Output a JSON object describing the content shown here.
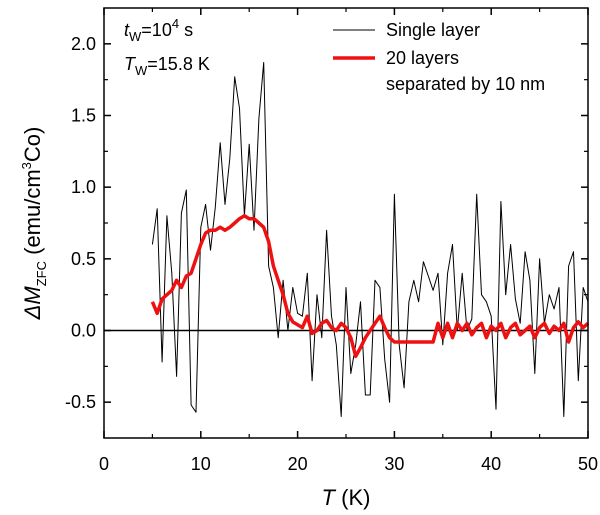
{
  "chart_data": {
    "type": "line",
    "xlim": [
      0,
      50
    ],
    "ylim": [
      -0.75,
      2.25
    ],
    "x_ticks": [
      0,
      10,
      20,
      30,
      40,
      50
    ],
    "y_ticks": [
      -0.5,
      0.0,
      0.5,
      1.0,
      1.5,
      2.0
    ],
    "x_tick_labels": [
      "0",
      "10",
      "20",
      "30",
      "40",
      "50"
    ],
    "y_tick_labels": [
      "-0.5",
      "0.0",
      "0.5",
      "1.0",
      "1.5",
      "2.0"
    ],
    "xlabel": {
      "var": "T",
      "rest": " (K)"
    },
    "ylabel": {
      "delta": "ΔM",
      "sub": "ZFC",
      "unit_a": " (emu/cm",
      "sup": "3",
      "unit_b": "Co)"
    },
    "annotations": {
      "tw_var": "t",
      "tw_sub": "W",
      "tw_eq": "=10",
      "tw_sup": "4",
      "tw_unit": " s",
      "Tw_var": "T",
      "Tw_sub": "W",
      "Tw_eq": "=15.8 K"
    },
    "legend": [
      {
        "label": "Single layer",
        "color": "#000000"
      },
      {
        "label": "20 layers",
        "label2": "separated by 10 nm",
        "color": "#ee1111"
      }
    ],
    "zero_line": 0,
    "series": [
      {
        "name": "Single layer",
        "color": "#000000",
        "x": [
          5.0,
          5.5,
          6.0,
          6.5,
          7.0,
          7.5,
          8.0,
          8.5,
          9.0,
          9.5,
          10.0,
          10.5,
          11.0,
          11.5,
          12.0,
          12.5,
          13.0,
          13.5,
          14.0,
          14.5,
          15.0,
          15.5,
          16.0,
          16.5,
          17.0,
          17.5,
          18.0,
          18.5,
          19.0,
          19.5,
          20.0,
          20.5,
          21.0,
          21.5,
          22.0,
          22.5,
          23.0,
          23.5,
          24.0,
          24.5,
          25.0,
          25.5,
          26.0,
          26.5,
          27.0,
          27.5,
          28.0,
          28.5,
          29.0,
          29.5,
          30.0,
          30.5,
          31.0,
          31.5,
          32.0,
          32.5,
          33.0,
          33.5,
          34.0,
          34.5,
          35.0,
          35.5,
          36.0,
          36.5,
          37.0,
          37.5,
          38.0,
          38.5,
          39.0,
          39.5,
          40.0,
          40.5,
          41.0,
          41.5,
          42.0,
          42.5,
          43.0,
          43.5,
          44.0,
          44.5,
          45.0,
          45.5,
          46.0,
          46.5,
          47.0,
          47.5,
          48.0,
          48.5,
          49.0,
          49.5,
          50.0
        ],
        "values": [
          0.6,
          0.85,
          -0.22,
          0.8,
          0.4,
          -0.32,
          0.82,
          0.98,
          -0.52,
          -0.57,
          0.72,
          0.88,
          0.56,
          0.86,
          1.31,
          0.88,
          1.2,
          1.77,
          1.55,
          0.8,
          1.3,
          0.7,
          1.48,
          1.87,
          0.45,
          0.3,
          -0.05,
          0.35,
          0.0,
          0.3,
          0.12,
          0.1,
          0.4,
          -0.35,
          0.25,
          -0.05,
          0.7,
          0.1,
          -0.1,
          -0.6,
          0.3,
          -0.3,
          -0.1,
          0.2,
          -0.45,
          -0.45,
          0.35,
          0.3,
          -0.2,
          -0.5,
          0.95,
          -0.1,
          -0.4,
          0.2,
          0.35,
          0.2,
          0.48,
          0.38,
          0.28,
          0.4,
          -0.1,
          0.4,
          0.6,
          0.0,
          0.4,
          0.0,
          0.08,
          0.95,
          0.25,
          0.2,
          0.1,
          -0.55,
          0.9,
          0.25,
          0.6,
          0.22,
          0.05,
          0.55,
          0.35,
          -0.3,
          0.5,
          0.05,
          0.25,
          0.15,
          0.3,
          -0.6,
          0.45,
          0.55,
          -0.35,
          0.3,
          0.2
        ]
      },
      {
        "name": "20 layers separated by 10 nm",
        "color": "#ee1111",
        "x": [
          5.0,
          5.5,
          6.0,
          6.5,
          7.0,
          7.5,
          8.0,
          8.5,
          9.0,
          9.5,
          10.0,
          10.5,
          11.0,
          11.5,
          12.0,
          12.5,
          13.0,
          13.5,
          14.0,
          14.5,
          15.0,
          15.5,
          16.0,
          16.5,
          17.0,
          17.5,
          18.0,
          18.5,
          19.0,
          19.5,
          20.0,
          20.5,
          21.0,
          21.5,
          22.0,
          22.5,
          23.0,
          23.5,
          24.0,
          24.5,
          25.0,
          25.5,
          26.0,
          26.5,
          27.0,
          27.5,
          28.0,
          28.5,
          29.0,
          29.5,
          30.0,
          30.5,
          31.0,
          31.5,
          32.0,
          32.5,
          33.0,
          33.5,
          34.0,
          34.5,
          35.0,
          35.5,
          36.0,
          36.5,
          37.0,
          37.5,
          38.0,
          38.5,
          39.0,
          39.5,
          40.0,
          40.5,
          41.0,
          41.5,
          42.0,
          42.5,
          43.0,
          43.5,
          44.0,
          44.5,
          45.0,
          45.5,
          46.0,
          46.5,
          47.0,
          47.5,
          48.0,
          48.5,
          49.0,
          49.5,
          50.0
        ],
        "values": [
          0.2,
          0.12,
          0.22,
          0.25,
          0.28,
          0.35,
          0.3,
          0.38,
          0.4,
          0.5,
          0.6,
          0.68,
          0.7,
          0.7,
          0.72,
          0.7,
          0.72,
          0.75,
          0.78,
          0.8,
          0.78,
          0.78,
          0.75,
          0.72,
          0.62,
          0.45,
          0.35,
          0.25,
          0.12,
          0.06,
          0.04,
          0.02,
          0.1,
          -0.02,
          0.0,
          0.05,
          0.07,
          0.02,
          0.0,
          0.05,
          0.02,
          -0.05,
          -0.18,
          -0.12,
          -0.05,
          0.0,
          0.05,
          0.1,
          0.02,
          -0.05,
          -0.08,
          -0.08,
          -0.08,
          -0.08,
          -0.08,
          -0.08,
          -0.08,
          -0.08,
          -0.08,
          0.05,
          -0.05,
          0.05,
          -0.05,
          0.05,
          0.0,
          0.05,
          -0.03,
          0.02,
          0.05,
          -0.05,
          0.03,
          0.0,
          0.05,
          -0.05,
          0.02,
          0.05,
          -0.03,
          0.0,
          0.03,
          -0.05,
          0.02,
          0.05,
          -0.02,
          0.03,
          0.0,
          0.05,
          -0.08,
          0.02,
          0.06,
          0.02,
          0.05
        ]
      }
    ]
  }
}
